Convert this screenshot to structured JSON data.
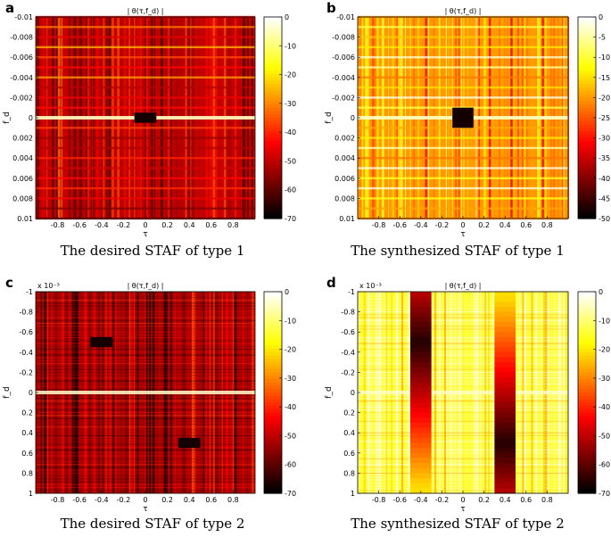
{
  "figure": {
    "captions": [
      "The desired STAF of type 1",
      "The synthesized STAF of type 1",
      "The desired STAF of type 2",
      "The synthesized STAF of type 2"
    ]
  },
  "chart_data": [
    {
      "type": "heatmap",
      "panel_letter": "a",
      "title": "| θ(τ,f_d) |",
      "xlabel": "τ",
      "ylabel": "f_d",
      "y_exponent": "",
      "xlim": [
        -1,
        1
      ],
      "ylim": [
        -0.01,
        0.01
      ],
      "x_ticks": [
        "-0.8",
        "-0.6",
        "-0.4",
        "-0.2",
        "0",
        "0.2",
        "0.4",
        "0.6",
        "0.8"
      ],
      "y_ticks": [
        "-0.01",
        "-0.008",
        "-0.006",
        "-0.004",
        "-0.002",
        "0",
        "0.002",
        "0.004",
        "0.006",
        "0.008",
        "0.01"
      ],
      "colorbar_ticks": [
        "0",
        "-10",
        "-20",
        "-30",
        "-40",
        "-50",
        "-60",
        "-70"
      ],
      "colorbar_range": [
        -70,
        0
      ],
      "dark_blocks": [
        {
          "tau": [
            -0.1,
            0.1
          ],
          "fd": [
            -0.0005,
            0.0005
          ]
        }
      ],
      "hot_rows": [
        0
      ],
      "level": 0.28
    },
    {
      "type": "heatmap",
      "panel_letter": "b",
      "title": "| θ(τ,f_d) |",
      "xlabel": "τ",
      "ylabel": "f_d",
      "y_exponent": "",
      "xlim": [
        -1,
        1
      ],
      "ylim": [
        -0.01,
        0.01
      ],
      "x_ticks": [
        "-0.8",
        "-0.6",
        "-0.4",
        "-0.2",
        "0",
        "0.2",
        "0.4",
        "0.6",
        "0.8"
      ],
      "y_ticks": [
        "-0.01",
        "-0.008",
        "-0.006",
        "-0.004",
        "-0.002",
        "0",
        "0.002",
        "0.004",
        "0.006",
        "0.008",
        "0.01"
      ],
      "colorbar_ticks": [
        "0",
        "-5",
        "-10",
        "-15",
        "-20",
        "-25",
        "-30",
        "-35",
        "-40",
        "-45",
        "-50"
      ],
      "colorbar_range": [
        -50,
        0
      ],
      "dark_blocks": [
        {
          "tau": [
            -0.1,
            0.1
          ],
          "fd": [
            -0.001,
            0.001
          ]
        }
      ],
      "hot_rows": [
        0
      ],
      "level": 0.6
    },
    {
      "type": "heatmap",
      "panel_letter": "c",
      "title": "| θ(τ,f_d) |",
      "xlabel": "τ",
      "ylabel": "f_d",
      "y_exponent": "x 10⁻³",
      "xlim": [
        -1,
        1
      ],
      "ylim": [
        -1,
        1
      ],
      "x_ticks": [
        "-0.8",
        "-0.6",
        "-0.4",
        "-0.2",
        "0",
        "0.2",
        "0.4",
        "0.6",
        "0.8"
      ],
      "y_ticks": [
        "-1",
        "-0.8",
        "-0.6",
        "-0.4",
        "-0.2",
        "0",
        "0.2",
        "0.4",
        "0.6",
        "0.8",
        "1"
      ],
      "colorbar_ticks": [
        "0",
        "-10",
        "-20",
        "-30",
        "-40",
        "-50",
        "-60",
        "-70"
      ],
      "colorbar_range": [
        -70,
        0
      ],
      "dark_blocks": [
        {
          "tau": [
            -0.5,
            -0.3
          ],
          "fd": [
            -0.55,
            -0.45
          ]
        },
        {
          "tau": [
            0.3,
            0.5
          ],
          "fd": [
            0.45,
            0.55
          ]
        }
      ],
      "hot_rows": [
        0
      ],
      "level": 0.25
    },
    {
      "type": "heatmap",
      "panel_letter": "d",
      "title": "| θ(τ,f_d) |",
      "xlabel": "τ",
      "ylabel": "f_d",
      "y_exponent": "x 10⁻³",
      "xlim": [
        -1,
        1
      ],
      "ylim": [
        -1,
        1
      ],
      "x_ticks": [
        "-0.8",
        "-0.6",
        "-0.4",
        "-0.2",
        "0",
        "0.2",
        "0.4",
        "0.6",
        "0.8"
      ],
      "y_ticks": [
        "-1",
        "-0.8",
        "-0.6",
        "-0.4",
        "-0.2",
        "0",
        "0.2",
        "0.4",
        "0.6",
        "0.8",
        "1"
      ],
      "colorbar_ticks": [
        "0",
        "-10",
        "-20",
        "-30",
        "-40",
        "-50",
        "-60",
        "-70"
      ],
      "colorbar_range": [
        -70,
        0
      ],
      "dark_columns": [
        {
          "tau": [
            -0.5,
            -0.3
          ],
          "fd_dark": -0.5
        },
        {
          "tau": [
            0.3,
            0.5
          ],
          "fd_dark": 0.5
        }
      ],
      "hot_rows": [
        0
      ],
      "level": 0.82
    }
  ]
}
